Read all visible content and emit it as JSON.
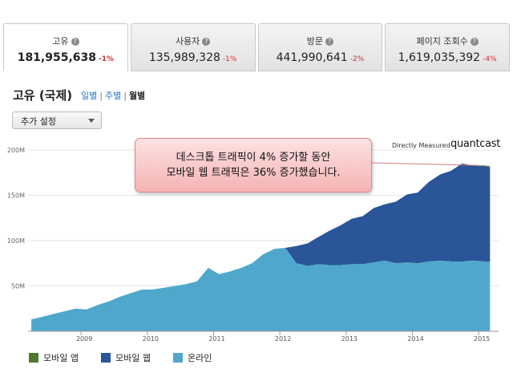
{
  "tabs": [
    {
      "label": "고유",
      "value": "181,955,638",
      "change": "-1%"
    },
    {
      "label": "사용자",
      "value": "135,989,328",
      "change": "-1%"
    },
    {
      "label": "방문",
      "value": "441,990,641",
      "change": "-2%"
    },
    {
      "label": "페이지 조회수",
      "value": "1,619,035,392",
      "change": "-4%"
    }
  ],
  "header": {
    "title": "고유 (국제)",
    "periods": {
      "daily": "일별",
      "weekly": "주별",
      "monthly": "월별"
    }
  },
  "dropdown": {
    "label": "추가 설정"
  },
  "brand": {
    "measured": "Directly Measured",
    "name": "quantcast"
  },
  "callout": {
    "line1": "데스크톱 트래픽이 4% 증가할 동안",
    "line2": "모바일 웹 트래픽은 36% 증가했습니다."
  },
  "colors": {
    "app": "#4d7a2e",
    "web": "#2a5598",
    "online": "#4fa8cc"
  },
  "chart_data": {
    "type": "area",
    "title": "",
    "xlabel": "",
    "ylabel": "",
    "ylim": [
      0,
      200
    ],
    "y_ticks": [
      "200M",
      "150M",
      "100M",
      "50M"
    ],
    "x_ticks": [
      "2009",
      "2010",
      "2011",
      "2012",
      "2013",
      "2014",
      "2015"
    ],
    "x": [
      2008.25,
      2008.42,
      2008.58,
      2008.75,
      2008.92,
      2009.08,
      2009.25,
      2009.42,
      2009.58,
      2009.75,
      2009.92,
      2010.08,
      2010.25,
      2010.42,
      2010.58,
      2010.75,
      2010.92,
      2011.08,
      2011.25,
      2011.42,
      2011.58,
      2011.75,
      2011.92,
      2012.08,
      2012.25,
      2012.42,
      2012.58,
      2012.75,
      2012.92,
      2013.08,
      2013.25,
      2013.42,
      2013.58,
      2013.75,
      2013.92,
      2014.08,
      2014.25,
      2014.42,
      2014.58,
      2014.75,
      2014.92,
      2015.08,
      2015.17
    ],
    "series": [
      {
        "name": "모바일 앱",
        "values": [
          0,
          0,
          0,
          0,
          0,
          0,
          0,
          0,
          0,
          0,
          0,
          0,
          0,
          0,
          0,
          0,
          0,
          0,
          0,
          0,
          0,
          0,
          0,
          0,
          0,
          0,
          0,
          0,
          0,
          0,
          0,
          0,
          0,
          0,
          0,
          0,
          0,
          0,
          0,
          0,
          0,
          1,
          1
        ]
      },
      {
        "name": "모바일 웹",
        "values": [
          0,
          0,
          0,
          0,
          0,
          0,
          0,
          0,
          0,
          0,
          0,
          0,
          0,
          0,
          0,
          0,
          0,
          0,
          0,
          0,
          0,
          0,
          0,
          0,
          19,
          25,
          30,
          38,
          44,
          50,
          53,
          60,
          62,
          68,
          75,
          78,
          88,
          95,
          100,
          108,
          105,
          105,
          104
        ]
      },
      {
        "name": "온라인",
        "values": [
          13,
          16,
          19,
          22,
          25,
          24,
          29,
          33,
          38,
          42,
          46,
          46,
          48,
          50,
          52,
          55,
          70,
          63,
          66,
          70,
          75,
          85,
          91,
          92,
          75,
          72,
          74,
          73,
          73,
          74,
          74,
          76,
          78,
          75,
          76,
          75,
          77,
          78,
          77,
          77,
          78,
          77,
          77
        ]
      }
    ]
  },
  "legend": [
    {
      "label": "모바일 앱",
      "color": "#4d7a2e"
    },
    {
      "label": "모바일 웹",
      "color": "#2a5598"
    },
    {
      "label": "온라인",
      "color": "#4fa8cc"
    }
  ]
}
